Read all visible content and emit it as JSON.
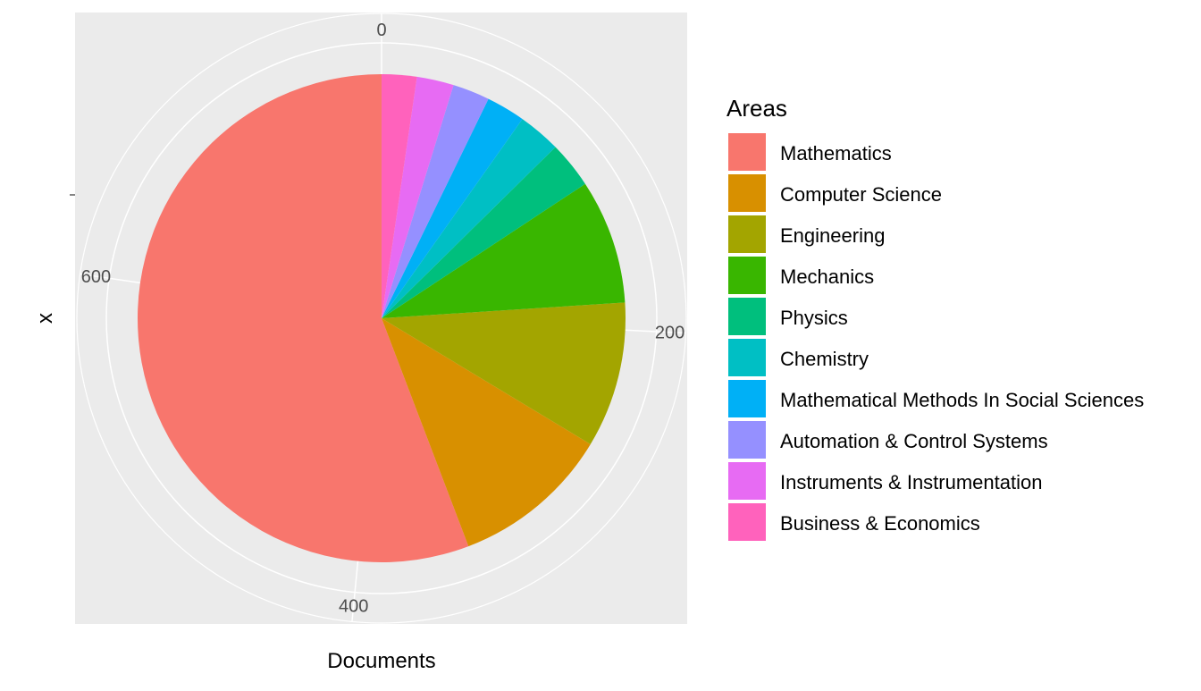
{
  "chart_data": {
    "type": "pie",
    "xlabel": "Documents",
    "ylabel": "x",
    "radial_ticks": [
      0,
      200,
      400,
      600
    ],
    "legend": {
      "title": "Areas",
      "placement": "right"
    },
    "grid": true,
    "series": [
      {
        "name": "Mathematics",
        "value": 433,
        "color": "#F8766D"
      },
      {
        "name": "Computer Science",
        "value": 82,
        "color": "#D89000"
      },
      {
        "name": "Engineering",
        "value": 75,
        "color": "#A3A500"
      },
      {
        "name": "Mechanics",
        "value": 64,
        "color": "#39B600"
      },
      {
        "name": "Physics",
        "value": 24,
        "color": "#00BF7D"
      },
      {
        "name": "Chemistry",
        "value": 22,
        "color": "#00BFC4"
      },
      {
        "name": "Mathematical Methods In Social Sciences",
        "value": 20,
        "color": "#00B0F6"
      },
      {
        "name": "Automation & Control Systems",
        "value": 19,
        "color": "#9590FF"
      },
      {
        "name": "Instruments & Instrumentation",
        "value": 19,
        "color": "#E76BF3"
      },
      {
        "name": "Business & Economics",
        "value": 18,
        "color": "#FF62BC"
      }
    ],
    "colors": {
      "panel_bg": "#EBEBEB",
      "grid": "#FFFFFF",
      "tick_text": "#4D4D4D",
      "text": "#000000"
    }
  }
}
